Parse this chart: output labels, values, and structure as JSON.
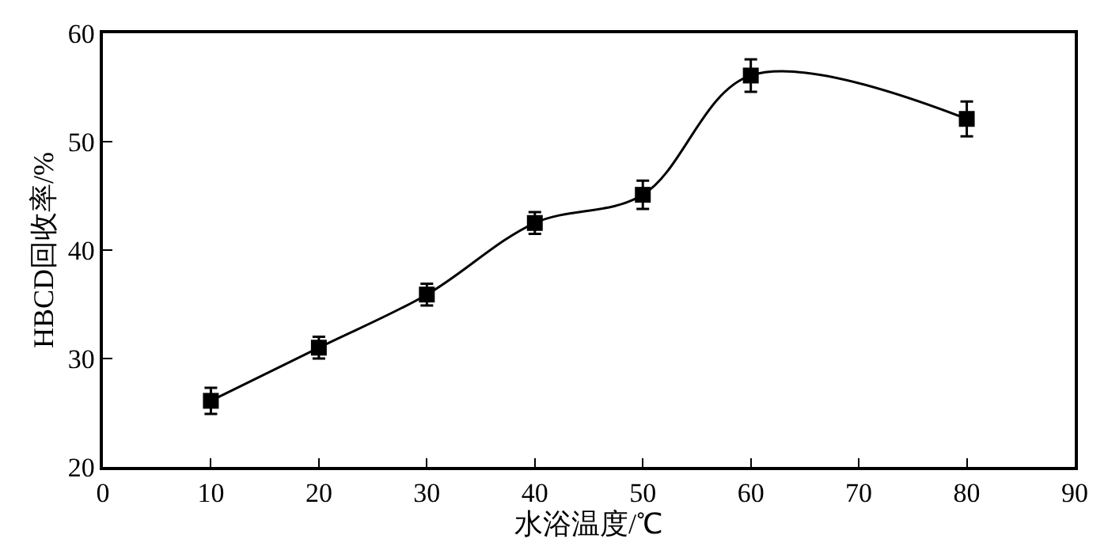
{
  "chart_data": {
    "type": "line",
    "xlabel": "水浴温度/℃",
    "ylabel": "HBCD回收率/%",
    "x": [
      10,
      20,
      30,
      40,
      50,
      60,
      80
    ],
    "series": [
      {
        "color": "#000000",
        "values": [
          26.1,
          31.0,
          35.9,
          42.5,
          45.1,
          56.1,
          52.1
        ],
        "errors": [
          1.2,
          1,
          1,
          1,
          1.3,
          1.5,
          1.6
        ]
      }
    ],
    "xlim": [
      0,
      90
    ],
    "xticks": [
      0,
      10,
      20,
      30,
      40,
      50,
      60,
      70,
      80,
      90
    ],
    "ylim": [
      20,
      60
    ],
    "yticks": [
      20,
      30,
      40,
      50,
      60
    ],
    "marker": "square",
    "line_style": "solid"
  }
}
